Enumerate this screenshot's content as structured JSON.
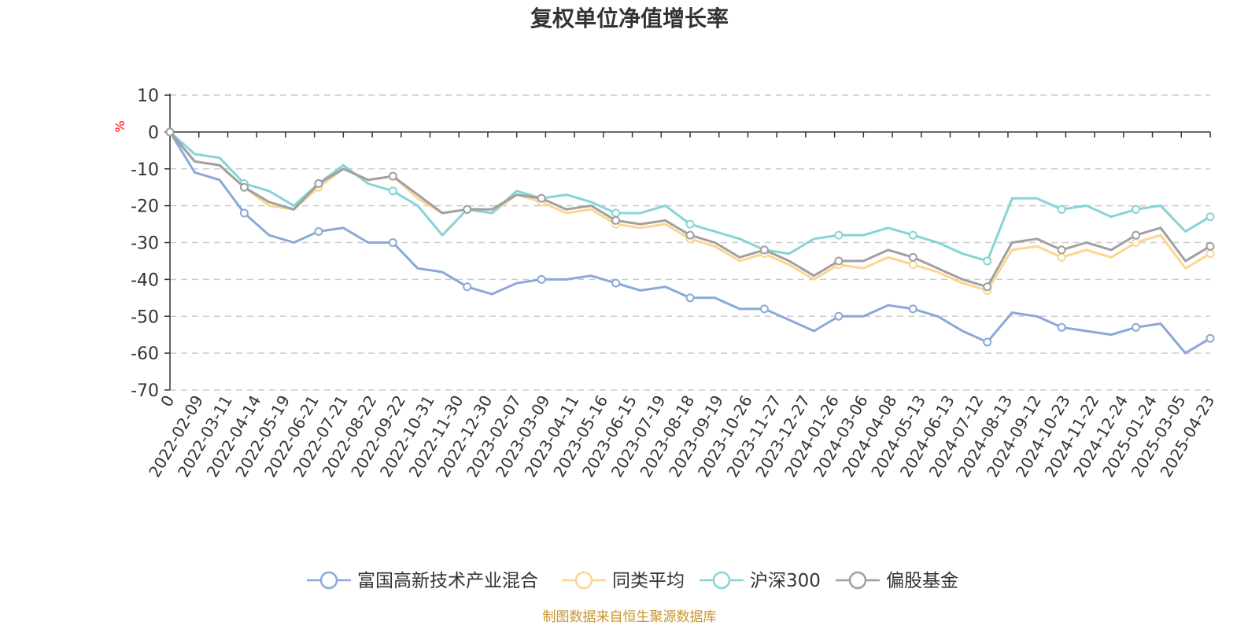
{
  "chart_data": {
    "type": "line",
    "title": "复权单位净值增长率",
    "y_unit": "%",
    "ylim": [
      -70,
      10
    ],
    "y_ticks": [
      10,
      0,
      -10,
      -20,
      -30,
      -40,
      -50,
      -60,
      -70
    ],
    "grid": true,
    "legend_position": "bottom",
    "x_tick_labels": [
      "0",
      "2022-02-09",
      "2022-03-11",
      "2022-04-14",
      "2022-05-19",
      "2022-06-21",
      "2022-07-21",
      "2022-08-22",
      "2022-09-22",
      "2022-10-31",
      "2022-11-30",
      "2022-12-30",
      "2023-02-07",
      "2023-03-09",
      "2023-04-11",
      "2023-05-16",
      "2023-06-15",
      "2023-07-19",
      "2023-08-18",
      "2023-09-19",
      "2023-10-26",
      "2023-11-27",
      "2023-12-27",
      "2024-01-26",
      "2024-03-06",
      "2024-04-08",
      "2024-05-13",
      "2024-06-13",
      "2024-07-12",
      "2024-08-13",
      "2024-09-12",
      "2024-10-23",
      "2024-11-22",
      "2024-12-24",
      "2025-01-24",
      "2025-03-05",
      "2025-04-23"
    ],
    "series": [
      {
        "name": "富国高新技术产业混合",
        "color": "#8aa9d9",
        "values": [
          0,
          -11,
          -13,
          -22,
          -28,
          -30,
          -27,
          -26,
          -30,
          -30,
          -37,
          -38,
          -42,
          -44,
          -41,
          -40,
          -40,
          -39,
          -41,
          -43,
          -42,
          -45,
          -45,
          -48,
          -48,
          -51,
          -54,
          -50,
          -50,
          -47,
          -48,
          -50,
          -54,
          -57,
          -49,
          -50,
          -53,
          -54,
          -55,
          -53,
          -52,
          -60,
          -56
        ]
      },
      {
        "name": "同类平均",
        "color": "#fcd591",
        "values": [
          0,
          -8,
          -9,
          -15,
          -20,
          -21,
          -15,
          -10,
          -13,
          -12,
          -18,
          -22,
          -21,
          -22,
          -17,
          -19,
          -22,
          -21,
          -25,
          -26,
          -25,
          -29,
          -31,
          -35,
          -33,
          -36,
          -40,
          -36,
          -37,
          -34,
          -36,
          -38,
          -41,
          -43,
          -32,
          -31,
          -34,
          -32,
          -34,
          -30,
          -28,
          -37,
          -33
        ]
      },
      {
        "name": "沪深300",
        "color": "#86d4d6",
        "values": [
          0,
          -6,
          -7,
          -14,
          -16,
          -20,
          -14,
          -9,
          -14,
          -16,
          -20,
          -28,
          -21,
          -22,
          -16,
          -18,
          -17,
          -19,
          -22,
          -22,
          -20,
          -25,
          -27,
          -29,
          -32,
          -33,
          -29,
          -28,
          -28,
          -26,
          -28,
          -30,
          -33,
          -35,
          -18,
          -18,
          -21,
          -20,
          -23,
          -21,
          -20,
          -27,
          -23
        ]
      },
      {
        "name": "偏股基金",
        "color": "#a0a0a0",
        "values": [
          0,
          -8,
          -9,
          -15,
          -19,
          -21,
          -14,
          -10,
          -13,
          -12,
          -17,
          -22,
          -21,
          -21,
          -17,
          -18,
          -21,
          -20,
          -24,
          -25,
          -24,
          -28,
          -30,
          -34,
          -32,
          -35,
          -39,
          -35,
          -35,
          -32,
          -34,
          -37,
          -40,
          -42,
          -30,
          -29,
          -32,
          -30,
          -32,
          -28,
          -26,
          -35,
          -31
        ]
      }
    ]
  },
  "source_note": "制图数据来自恒生聚源数据库"
}
